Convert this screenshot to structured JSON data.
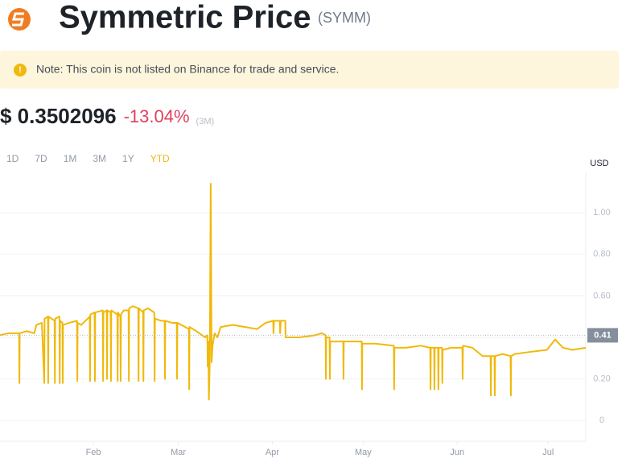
{
  "header": {
    "title": "Symmetric Price",
    "symbol": "(SYMM)",
    "note": "Note: This coin is not listed on Binance for trade and service.",
    "price": "$ 0.3502096",
    "change": "-13.04%",
    "change_period": "(3M)",
    "ranges": [
      "1D",
      "7D",
      "1M",
      "3M",
      "1Y",
      "YTD"
    ],
    "active_range": "YTD"
  },
  "chart_data": {
    "type": "line",
    "y_label": "USD",
    "color": "#f0b90b",
    "grid": true,
    "ylim": [
      -0.1,
      1.2
    ],
    "yticks": [
      0,
      {
        "value": 0.2,
        "label": "0.20"
      },
      {
        "value": 0.4,
        "label": "0.40"
      },
      {
        "value": 0.6,
        "label": "0.60"
      },
      {
        "value": 0.8,
        "label": "0.80"
      },
      {
        "value": 1.0,
        "label": "1.00"
      }
    ],
    "xlim": [
      1.2,
      194.4
    ],
    "xticks": [
      {
        "value": 32,
        "label": "Feb"
      },
      {
        "value": 60,
        "label": "Mar"
      },
      {
        "value": 91,
        "label": "Apr"
      },
      {
        "value": 121,
        "label": "May"
      },
      {
        "value": 152,
        "label": "Jun"
      },
      {
        "value": 182,
        "label": "Jul"
      }
    ],
    "current_price_marker": {
      "value": 0.41,
      "label": "0.41"
    },
    "x": [
      1.2,
      4,
      7.5,
      7.6,
      7.7,
      10,
      12.5,
      13.2,
      15,
      15.8,
      15.9,
      17.0,
      17.1,
      17.2,
      19.2,
      19.3,
      19.4,
      20.8,
      20.9,
      21.0,
      21.8,
      21.9,
      22.0,
      24,
      26.6,
      26.7,
      26.8,
      28,
      30.8,
      30.9,
      31.0,
      32.4,
      32.5,
      32.6,
      35.1,
      35.2,
      35.3,
      36.4,
      36.5,
      36.6,
      37.7,
      37.8,
      37.9,
      39.9,
      40.0,
      40.1,
      40.9,
      41.0,
      41.1,
      42,
      43.6,
      43.7,
      43.8,
      45,
      46.8,
      46.9,
      47.0,
      48.4,
      48.5,
      48.6,
      50,
      52.1,
      52.2,
      52.3,
      54.3,
      55.5,
      55.6,
      55.7,
      58,
      59.5,
      59.6,
      59.7,
      61,
      63.5,
      63.6,
      63.7,
      66,
      68.9,
      69.6,
      69.7,
      69.9,
      70.1,
      70.4,
      70.7,
      71.0,
      71.3,
      72,
      72.9,
      74,
      78,
      82,
      86,
      88.8,
      91.3,
      91.4,
      91.6,
      93.5,
      93.6,
      93.8,
      95.3,
      95.4,
      100,
      105,
      107.4,
      108.6,
      108.7,
      108.8,
      109.9,
      110.0,
      110.1,
      112,
      114.4,
      114.5,
      114.6,
      118,
      120.5,
      120.6,
      120.7,
      125,
      131.1,
      131.2,
      131.3,
      135,
      140,
      143.1,
      143.2,
      143.3,
      144.4,
      144.5,
      144.6,
      145.7,
      145.8,
      145.9,
      147.0,
      147.1,
      147.2,
      150,
      153.7,
      153.8,
      153.9,
      157,
      160.4,
      163.0,
      163.1,
      163.2,
      164.3,
      164.4,
      164.5,
      167,
      169.6,
      169.7,
      169.8,
      171,
      176,
      181.6,
      184.3,
      186.9,
      190,
      194.4
    ],
    "values": [
      0.41,
      0.42,
      0.42,
      0.18,
      0.42,
      0.43,
      0.42,
      0.46,
      0.47,
      0.18,
      0.49,
      0.5,
      0.18,
      0.5,
      0.48,
      0.18,
      0.49,
      0.5,
      0.18,
      0.48,
      0.47,
      0.18,
      0.46,
      0.47,
      0.48,
      0.19,
      0.47,
      0.46,
      0.5,
      0.19,
      0.51,
      0.52,
      0.19,
      0.52,
      0.53,
      0.19,
      0.52,
      0.53,
      0.2,
      0.53,
      0.52,
      0.19,
      0.53,
      0.51,
      0.19,
      0.52,
      0.5,
      0.19,
      0.51,
      0.53,
      0.53,
      0.19,
      0.54,
      0.55,
      0.54,
      0.19,
      0.54,
      0.52,
      0.19,
      0.53,
      0.54,
      0.52,
      0.19,
      0.49,
      0.48,
      0.48,
      0.2,
      0.48,
      0.47,
      0.47,
      0.2,
      0.47,
      0.46,
      0.44,
      0.15,
      0.45,
      0.43,
      0.4,
      0.41,
      0.26,
      0.38,
      0.1,
      0.3,
      1.14,
      0.28,
      0.36,
      0.42,
      0.4,
      0.45,
      0.46,
      0.45,
      0.44,
      0.47,
      0.48,
      0.42,
      0.48,
      0.48,
      0.42,
      0.48,
      0.48,
      0.4,
      0.4,
      0.41,
      0.42,
      0.41,
      0.2,
      0.4,
      0.4,
      0.2,
      0.38,
      0.38,
      0.38,
      0.2,
      0.38,
      0.38,
      0.38,
      0.15,
      0.37,
      0.37,
      0.36,
      0.15,
      0.35,
      0.35,
      0.36,
      0.35,
      0.15,
      0.35,
      0.35,
      0.15,
      0.35,
      0.35,
      0.15,
      0.35,
      0.35,
      0.18,
      0.34,
      0.35,
      0.35,
      0.2,
      0.36,
      0.35,
      0.31,
      0.31,
      0.12,
      0.31,
      0.31,
      0.12,
      0.31,
      0.32,
      0.31,
      0.12,
      0.31,
      0.32,
      0.33,
      0.34,
      0.39,
      0.35,
      0.34,
      0.35
    ]
  }
}
